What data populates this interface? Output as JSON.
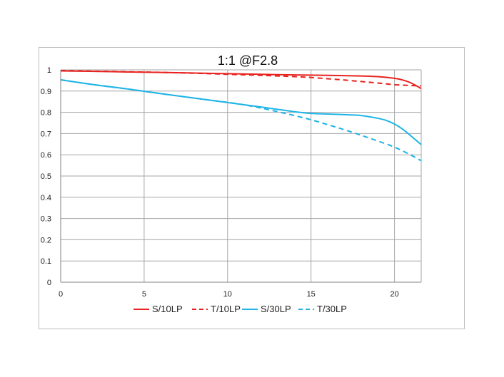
{
  "chart_data": {
    "type": "line",
    "title": "1:1  @F2.8",
    "xlim": [
      0,
      21.6
    ],
    "ylim": [
      0,
      1
    ],
    "xticks": [
      0,
      5,
      10,
      15,
      20
    ],
    "yticks": [
      0,
      0.1,
      0.2,
      0.3,
      0.4,
      0.5,
      0.6,
      0.7,
      0.8,
      0.9,
      1
    ],
    "grid": true,
    "legend_position": "bottom",
    "series": [
      {
        "name": "S/10LP",
        "color": "#e8221e",
        "dash": "solid",
        "x": [
          0,
          2,
          4,
          6,
          8,
          10,
          12,
          14,
          16,
          18,
          19,
          20,
          20.5,
          21,
          21.6
        ],
        "y": [
          0.995,
          0.993,
          0.99,
          0.988,
          0.985,
          0.982,
          0.979,
          0.976,
          0.974,
          0.971,
          0.968,
          0.96,
          0.952,
          0.938,
          0.912
        ]
      },
      {
        "name": "T/10LP",
        "color": "#e8221e",
        "dash": "dashed",
        "x": [
          0,
          2,
          4,
          6,
          8,
          10,
          12,
          14,
          15,
          16,
          17,
          18,
          19,
          20,
          20.5,
          21,
          21.6
        ],
        "y": [
          0.997,
          0.994,
          0.991,
          0.988,
          0.984,
          0.979,
          0.974,
          0.968,
          0.964,
          0.958,
          0.952,
          0.945,
          0.938,
          0.93,
          0.928,
          0.926,
          0.925
        ]
      },
      {
        "name": "S/30LP",
        "color": "#1fb4e6",
        "dash": "solid",
        "x": [
          0,
          2,
          4,
          6,
          8,
          10,
          12,
          14,
          15,
          16,
          17,
          18,
          19,
          19.5,
          20,
          20.5,
          21,
          21.6
        ],
        "y": [
          0.953,
          0.93,
          0.91,
          0.888,
          0.867,
          0.846,
          0.825,
          0.803,
          0.795,
          0.792,
          0.789,
          0.785,
          0.772,
          0.762,
          0.745,
          0.72,
          0.688,
          0.648
        ]
      },
      {
        "name": "T/30LP",
        "color": "#1fb4e6",
        "dash": "dashed",
        "x": [
          0,
          2,
          4,
          6,
          8,
          10,
          11,
          12,
          13,
          14,
          15,
          16,
          17,
          18,
          19,
          20,
          21,
          21.6
        ],
        "y": [
          0.953,
          0.93,
          0.91,
          0.888,
          0.867,
          0.847,
          0.835,
          0.82,
          0.803,
          0.785,
          0.765,
          0.742,
          0.718,
          0.692,
          0.665,
          0.636,
          0.598,
          0.572
        ]
      }
    ]
  }
}
